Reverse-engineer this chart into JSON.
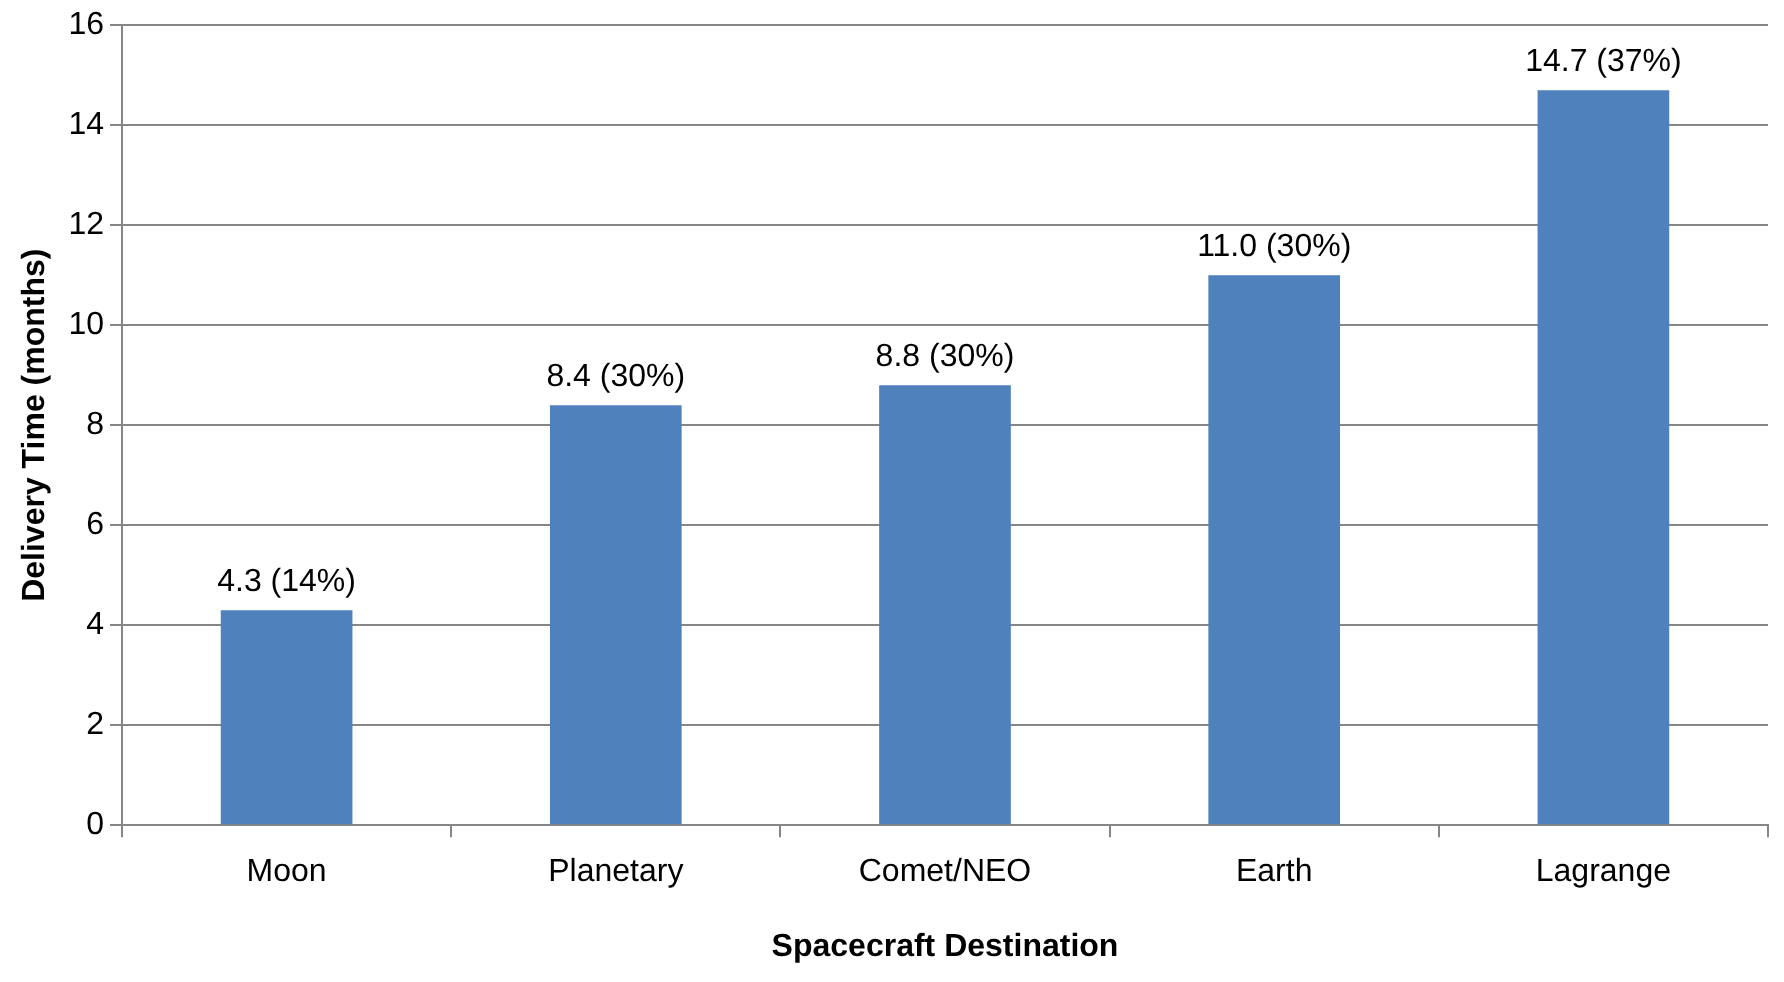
{
  "chart_data": {
    "type": "bar",
    "xlabel": "Spacecraft Destination",
    "ylabel": "Delivery Time (months)",
    "categories": [
      "Moon",
      "Planetary",
      "Comet/NEO",
      "Earth",
      "Lagrange"
    ],
    "values": [
      4.3,
      8.4,
      8.8,
      11.0,
      14.7
    ],
    "color": "#4f81bd",
    "value_labels": [
      "4.3 (14%)",
      "8.4 (30%)",
      "8.8 (30%)",
      "11.0 (30%)",
      "14.7 (37%)"
    ],
    "ylim": [
      0,
      16
    ],
    "yticks": [
      0,
      2,
      4,
      6,
      8,
      10,
      12,
      14,
      16
    ],
    "grid": "y"
  }
}
